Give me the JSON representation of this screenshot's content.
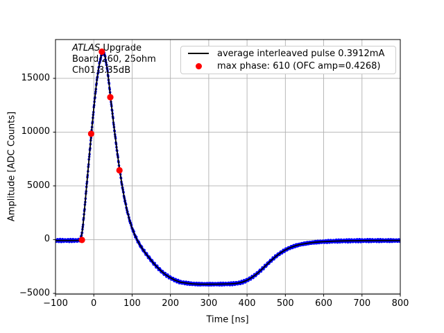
{
  "figure": {
    "background": "#ffffff"
  },
  "chart_data": {
    "type": "line",
    "title": "",
    "xlabel": "Time [ns]",
    "ylabel": "Amplitude [ADC Counts]",
    "xlim": [
      -100,
      800
    ],
    "ylim": [
      -5070,
      18610
    ],
    "grid": true,
    "grid_color": "#b0b0b0",
    "xticks": [
      -100,
      0,
      100,
      200,
      300,
      400,
      500,
      600,
      700,
      800
    ],
    "xtick_labels": [
      "−100",
      "0",
      "100",
      "200",
      "300",
      "400",
      "500",
      "600",
      "700",
      "800"
    ],
    "yticks": [
      -5000,
      0,
      5000,
      10000,
      15000
    ],
    "ytick_labels": [
      "−5000",
      "0",
      "5000",
      "10000",
      "15000"
    ],
    "annotation": {
      "experiment": "ATLAS",
      "line1_rest": " Upgrade",
      "line2": "Board 260, 25ohm",
      "line3": "Ch01 3.35dB"
    },
    "legend": {
      "position": "upper right",
      "entries": [
        {
          "label": "average interleaved pulse 0.3912mA",
          "marker": "line",
          "color": "#000000"
        },
        {
          "label": "max phase: 610 (OFC amp=0.4268)",
          "marker": "dot",
          "color": "#ff0000"
        }
      ]
    },
    "series": [
      {
        "name": "interleaved-pulse-samples",
        "type": "scatter",
        "color": "#0000ff",
        "marker_radius": 1.8,
        "sample_step_ns": 0.8,
        "points_ref": "waveform"
      },
      {
        "name": "average-interleaved-pulse",
        "type": "line",
        "color": "#000000",
        "line_width": 1.8,
        "points_ref": "waveform"
      },
      {
        "name": "max-phase-samples",
        "type": "scatter",
        "color": "#ff0000",
        "marker_radius": 4.6,
        "points": [
          [
            -31,
            -30
          ],
          [
            -7,
            9850
          ],
          [
            21,
            17480
          ],
          [
            43,
            13250
          ],
          [
            67,
            6450
          ]
        ]
      }
    ],
    "waveform": [
      [
        -100,
        -80
      ],
      [
        -60,
        -80
      ],
      [
        -45,
        -75
      ],
      [
        -39,
        -60
      ],
      [
        -36,
        -15
      ],
      [
        -34,
        120
      ],
      [
        -32,
        400
      ],
      [
        -30,
        850
      ],
      [
        -28,
        1450
      ],
      [
        -26,
        2150
      ],
      [
        -24,
        2930
      ],
      [
        -22,
        3720
      ],
      [
        -20,
        4510
      ],
      [
        -18,
        5300
      ],
      [
        -16,
        6090
      ],
      [
        -14,
        6880
      ],
      [
        -12,
        7670
      ],
      [
        -10,
        8450
      ],
      [
        -8,
        9230
      ],
      [
        -6,
        10000
      ],
      [
        -4,
        10760
      ],
      [
        -2,
        11500
      ],
      [
        0,
        12220
      ],
      [
        2,
        12920
      ],
      [
        4,
        13580
      ],
      [
        6,
        14200
      ],
      [
        8,
        14780
      ],
      [
        10,
        15310
      ],
      [
        12,
        15790
      ],
      [
        14,
        16220
      ],
      [
        16,
        16590
      ],
      [
        18,
        16900
      ],
      [
        20,
        17250
      ],
      [
        22,
        17420
      ],
      [
        24,
        17480
      ],
      [
        26,
        17390
      ],
      [
        28,
        17190
      ],
      [
        30,
        16900
      ],
      [
        32,
        16530
      ],
      [
        34,
        16090
      ],
      [
        36,
        15590
      ],
      [
        38,
        15040
      ],
      [
        40,
        14460
      ],
      [
        42,
        13750
      ],
      [
        44,
        13140
      ],
      [
        46,
        12530
      ],
      [
        48,
        11920
      ],
      [
        50,
        11320
      ],
      [
        52,
        10720
      ],
      [
        54,
        10130
      ],
      [
        56,
        9550
      ],
      [
        58,
        8980
      ],
      [
        60,
        8420
      ],
      [
        62,
        7880
      ],
      [
        64,
        7350
      ],
      [
        66,
        6850
      ],
      [
        68,
        6360
      ],
      [
        70,
        5890
      ],
      [
        72,
        5440
      ],
      [
        74,
        5010
      ],
      [
        76,
        4600
      ],
      [
        78,
        4210
      ],
      [
        80,
        3840
      ],
      [
        83,
        3320
      ],
      [
        86,
        2840
      ],
      [
        89,
        2400
      ],
      [
        92,
        2000
      ],
      [
        95,
        1630
      ],
      [
        98,
        1290
      ],
      [
        101,
        980
      ],
      [
        104,
        700
      ],
      [
        107,
        440
      ],
      [
        110,
        200
      ],
      [
        113,
        -20
      ],
      [
        116,
        -220
      ],
      [
        120,
        -470
      ],
      [
        125,
        -750
      ],
      [
        130,
        -1010
      ],
      [
        136,
        -1300
      ],
      [
        142,
        -1580
      ],
      [
        149,
        -1890
      ],
      [
        157,
        -2230
      ],
      [
        166,
        -2580
      ],
      [
        176,
        -2930
      ],
      [
        187,
        -3250
      ],
      [
        199,
        -3530
      ],
      [
        212,
        -3770
      ],
      [
        226,
        -3960
      ],
      [
        241,
        -4040
      ],
      [
        257,
        -4110
      ],
      [
        275,
        -4140
      ],
      [
        295,
        -4145
      ],
      [
        318,
        -4140
      ],
      [
        340,
        -4130
      ],
      [
        357,
        -4110
      ],
      [
        369,
        -4080
      ],
      [
        379,
        -4030
      ],
      [
        388,
        -3950
      ],
      [
        396,
        -3840
      ],
      [
        404,
        -3700
      ],
      [
        412,
        -3530
      ],
      [
        420,
        -3330
      ],
      [
        428,
        -3100
      ],
      [
        436,
        -2850
      ],
      [
        444,
        -2580
      ],
      [
        452,
        -2300
      ],
      [
        460,
        -2030
      ],
      [
        468,
        -1770
      ],
      [
        476,
        -1530
      ],
      [
        484,
        -1320
      ],
      [
        492,
        -1130
      ],
      [
        500,
        -960
      ],
      [
        509,
        -800
      ],
      [
        518,
        -670
      ],
      [
        528,
        -550
      ],
      [
        539,
        -450
      ],
      [
        551,
        -370
      ],
      [
        564,
        -300
      ],
      [
        578,
        -245
      ],
      [
        594,
        -200
      ],
      [
        612,
        -165
      ],
      [
        632,
        -135
      ],
      [
        655,
        -115
      ],
      [
        680,
        -100
      ],
      [
        710,
        -90
      ],
      [
        745,
        -85
      ],
      [
        800,
        -85
      ]
    ]
  }
}
